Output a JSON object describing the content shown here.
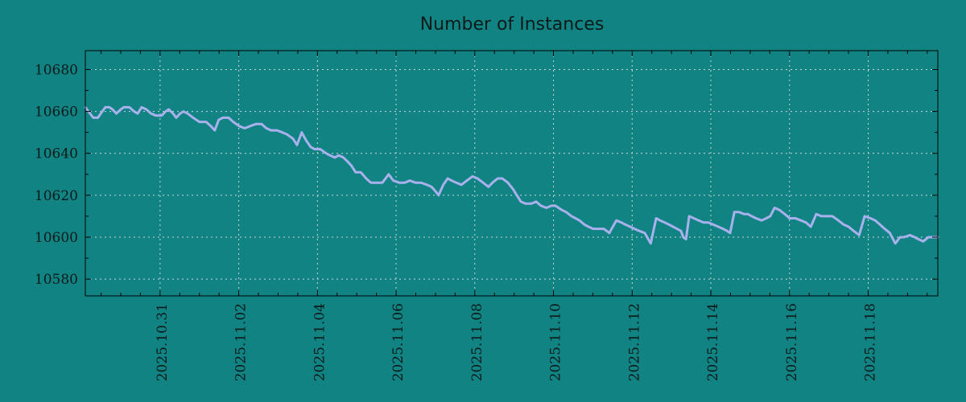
{
  "colors": {
    "background": "#128383",
    "line": "#a9b1ec",
    "grid": "#c8d6d6",
    "axis": "#000000",
    "text": "#0d1a1a"
  },
  "chart_data": {
    "type": "line",
    "title": "Number of Instances",
    "xlabel": "",
    "ylabel": "",
    "legend": "none",
    "grid": true,
    "x_unit": "days (t=2.0 corresponds to 2025.10.31, one unit = one day)",
    "xlim": [
      0.1,
      21.77
    ],
    "ylim": [
      10572,
      10689
    ],
    "y_ticks": {
      "major": [
        10580,
        10600,
        10620,
        10640,
        10660,
        10680
      ],
      "minor": [
        10590,
        10610,
        10630,
        10650,
        10670
      ]
    },
    "x_ticks": {
      "major": [
        {
          "t": 2,
          "label": "2025.10.31"
        },
        {
          "t": 4,
          "label": "2025.11.02"
        },
        {
          "t": 6,
          "label": "2025.11.04"
        },
        {
          "t": 8,
          "label": "2025.11.06"
        },
        {
          "t": 10,
          "label": "2025.11.08"
        },
        {
          "t": 12,
          "label": "2025.11.10"
        },
        {
          "t": 14,
          "label": "2025.11.12"
        },
        {
          "t": 16,
          "label": "2025.11.14"
        },
        {
          "t": 18,
          "label": "2025.11.16"
        },
        {
          "t": 20,
          "label": "2025.11.18"
        }
      ],
      "minor_step": 0.5
    },
    "series": [
      {
        "name": "instances",
        "points": [
          [
            0.1,
            10662
          ],
          [
            0.18,
            10660
          ],
          [
            0.3,
            10657
          ],
          [
            0.42,
            10657
          ],
          [
            0.53,
            10660
          ],
          [
            0.61,
            10662
          ],
          [
            0.71,
            10662
          ],
          [
            0.79,
            10661
          ],
          [
            0.89,
            10659
          ],
          [
            1.0,
            10661
          ],
          [
            1.08,
            10662
          ],
          [
            1.22,
            10662
          ],
          [
            1.34,
            10660
          ],
          [
            1.43,
            10659
          ],
          [
            1.53,
            10662
          ],
          [
            1.65,
            10661
          ],
          [
            1.77,
            10659
          ],
          [
            1.9,
            10658
          ],
          [
            2.04,
            10658
          ],
          [
            2.14,
            10660
          ],
          [
            2.22,
            10661
          ],
          [
            2.33,
            10659
          ],
          [
            2.41,
            10657
          ],
          [
            2.51,
            10659
          ],
          [
            2.59,
            10660
          ],
          [
            2.7,
            10659
          ],
          [
            2.84,
            10657
          ],
          [
            3.0,
            10655
          ],
          [
            3.17,
            10655
          ],
          [
            3.29,
            10653
          ],
          [
            3.39,
            10651
          ],
          [
            3.49,
            10656
          ],
          [
            3.6,
            10657
          ],
          [
            3.74,
            10657
          ],
          [
            3.86,
            10655
          ],
          [
            4.01,
            10653
          ],
          [
            4.15,
            10652
          ],
          [
            4.29,
            10653
          ],
          [
            4.44,
            10654
          ],
          [
            4.58,
            10654
          ],
          [
            4.7,
            10652
          ],
          [
            4.82,
            10651
          ],
          [
            4.97,
            10651
          ],
          [
            5.11,
            10650
          ],
          [
            5.23,
            10649
          ],
          [
            5.38,
            10647
          ],
          [
            5.48,
            10644
          ],
          [
            5.6,
            10650
          ],
          [
            5.72,
            10646
          ],
          [
            5.83,
            10643
          ],
          [
            5.93,
            10642
          ],
          [
            6.07,
            10642
          ],
          [
            6.22,
            10640
          ],
          [
            6.32,
            10639
          ],
          [
            6.44,
            10638
          ],
          [
            6.54,
            10639
          ],
          [
            6.66,
            10638
          ],
          [
            6.77,
            10636
          ],
          [
            6.87,
            10634
          ],
          [
            6.97,
            10631
          ],
          [
            7.1,
            10631
          ],
          [
            7.24,
            10628
          ],
          [
            7.36,
            10626
          ],
          [
            7.51,
            10626
          ],
          [
            7.65,
            10626
          ],
          [
            7.81,
            10630
          ],
          [
            7.93,
            10627
          ],
          [
            8.08,
            10626
          ],
          [
            8.22,
            10626
          ],
          [
            8.35,
            10627
          ],
          [
            8.49,
            10626
          ],
          [
            8.63,
            10626
          ],
          [
            8.78,
            10625
          ],
          [
            8.9,
            10624
          ],
          [
            9.0,
            10622
          ],
          [
            9.08,
            10620
          ],
          [
            9.2,
            10625
          ],
          [
            9.31,
            10628
          ],
          [
            9.41,
            10627
          ],
          [
            9.53,
            10626
          ],
          [
            9.66,
            10625
          ],
          [
            9.8,
            10627
          ],
          [
            9.94,
            10629
          ],
          [
            10.07,
            10628
          ],
          [
            10.21,
            10626
          ],
          [
            10.35,
            10624
          ],
          [
            10.45,
            10626
          ],
          [
            10.58,
            10628
          ],
          [
            10.7,
            10628
          ],
          [
            10.84,
            10626
          ],
          [
            10.97,
            10623
          ],
          [
            11.07,
            10620
          ],
          [
            11.17,
            10617
          ],
          [
            11.29,
            10616
          ],
          [
            11.44,
            10616
          ],
          [
            11.56,
            10617
          ],
          [
            11.68,
            10615
          ],
          [
            11.82,
            10614
          ],
          [
            11.95,
            10615
          ],
          [
            12.05,
            10615
          ],
          [
            12.21,
            10613
          ],
          [
            12.32,
            10612
          ],
          [
            12.46,
            10610
          ],
          [
            12.56,
            10609
          ],
          [
            12.66,
            10608
          ],
          [
            12.79,
            10606
          ],
          [
            12.89,
            10605
          ],
          [
            13.01,
            10604
          ],
          [
            13.15,
            10604
          ],
          [
            13.28,
            10604
          ],
          [
            13.42,
            10602
          ],
          [
            13.6,
            10608
          ],
          [
            13.73,
            10607
          ],
          [
            13.83,
            10606
          ],
          [
            13.95,
            10605
          ],
          [
            14.06,
            10604
          ],
          [
            14.18,
            10603
          ],
          [
            14.32,
            10602
          ],
          [
            14.47,
            10597
          ],
          [
            14.61,
            10609
          ],
          [
            14.71,
            10608
          ],
          [
            14.83,
            10607
          ],
          [
            14.94,
            10606
          ],
          [
            15.04,
            10605
          ],
          [
            15.14,
            10604
          ],
          [
            15.24,
            10603
          ],
          [
            15.3,
            10600
          ],
          [
            15.37,
            10599
          ],
          [
            15.45,
            10610
          ],
          [
            15.57,
            10609
          ],
          [
            15.69,
            10608
          ],
          [
            15.82,
            10607
          ],
          [
            15.94,
            10607
          ],
          [
            16.06,
            10606
          ],
          [
            16.19,
            10605
          ],
          [
            16.31,
            10604
          ],
          [
            16.41,
            10603
          ],
          [
            16.49,
            10602
          ],
          [
            16.6,
            10612
          ],
          [
            16.72,
            10612
          ],
          [
            16.84,
            10611
          ],
          [
            16.94,
            10611
          ],
          [
            17.04,
            10610
          ],
          [
            17.15,
            10609
          ],
          [
            17.29,
            10608
          ],
          [
            17.41,
            10609
          ],
          [
            17.51,
            10610
          ],
          [
            17.62,
            10614
          ],
          [
            17.74,
            10613
          ],
          [
            17.88,
            10611
          ],
          [
            18.0,
            10609
          ],
          [
            18.15,
            10609
          ],
          [
            18.29,
            10608
          ],
          [
            18.42,
            10607
          ],
          [
            18.54,
            10605
          ],
          [
            18.68,
            10611
          ],
          [
            18.81,
            10610
          ],
          [
            18.95,
            10610
          ],
          [
            19.09,
            10610
          ],
          [
            19.24,
            10608
          ],
          [
            19.38,
            10606
          ],
          [
            19.5,
            10605
          ],
          [
            19.63,
            10603
          ],
          [
            19.77,
            10601
          ],
          [
            19.91,
            10610
          ],
          [
            20.06,
            10609
          ],
          [
            20.18,
            10608
          ],
          [
            20.3,
            10606
          ],
          [
            20.42,
            10604
          ],
          [
            20.55,
            10602
          ],
          [
            20.69,
            10597
          ],
          [
            20.81,
            10600
          ],
          [
            20.91,
            10600
          ],
          [
            21.06,
            10601
          ],
          [
            21.18,
            10600
          ],
          [
            21.28,
            10599
          ],
          [
            21.4,
            10598
          ],
          [
            21.53,
            10600
          ],
          [
            21.65,
            10600
          ],
          [
            21.77,
            10600
          ]
        ]
      }
    ]
  }
}
